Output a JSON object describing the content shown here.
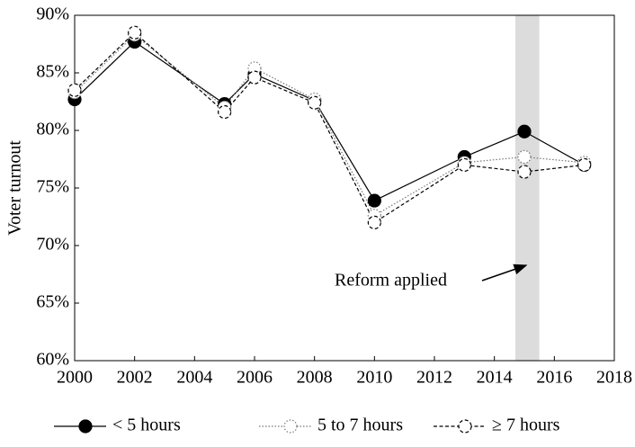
{
  "chart_data": {
    "type": "line",
    "y_label": "Voter turnout",
    "annotation": "Reform applied",
    "shaded_band": [
      2014.7,
      2015.5
    ],
    "band_color": "#dcdcdc",
    "x": [
      2000,
      2002,
      2005,
      2006,
      2008,
      2010,
      2013,
      2015,
      2017
    ],
    "series": [
      {
        "name": "< 5 hours",
        "color": "#000000",
        "line_style": "solid",
        "marker_fill": "#000000",
        "values": [
          82.7,
          87.7,
          82.3,
          84.9,
          82.6,
          73.9,
          77.7,
          79.9,
          77.0
        ]
      },
      {
        "name": "5 to 7 hours",
        "color": "#777777",
        "line_style": "dotted",
        "marker_fill": "#ffffff",
        "values": [
          83.3,
          88.3,
          82.0,
          85.4,
          82.7,
          72.6,
          77.2,
          77.7,
          77.2
        ]
      },
      {
        "name": "≥ 7 hours",
        "color": "#000000",
        "line_style": "dashed",
        "marker_fill": "#ffffff",
        "values": [
          83.5,
          88.5,
          81.6,
          84.6,
          82.4,
          72.0,
          77.0,
          76.4,
          77.0
        ]
      }
    ],
    "xlim": [
      2000,
      2018
    ],
    "xticks": [
      2000,
      2002,
      2004,
      2006,
      2008,
      2010,
      2012,
      2014,
      2016,
      2018
    ],
    "ylim": [
      60,
      90
    ],
    "yticks": [
      {
        "value": 60,
        "label": "60%"
      },
      {
        "value": 65,
        "label": "65%"
      },
      {
        "value": 70,
        "label": "70%"
      },
      {
        "value": 75,
        "label": "75%"
      },
      {
        "value": 80,
        "label": "80%"
      },
      {
        "value": 85,
        "label": "85%"
      },
      {
        "value": 90,
        "label": "90%"
      }
    ],
    "legend": "bottom"
  }
}
